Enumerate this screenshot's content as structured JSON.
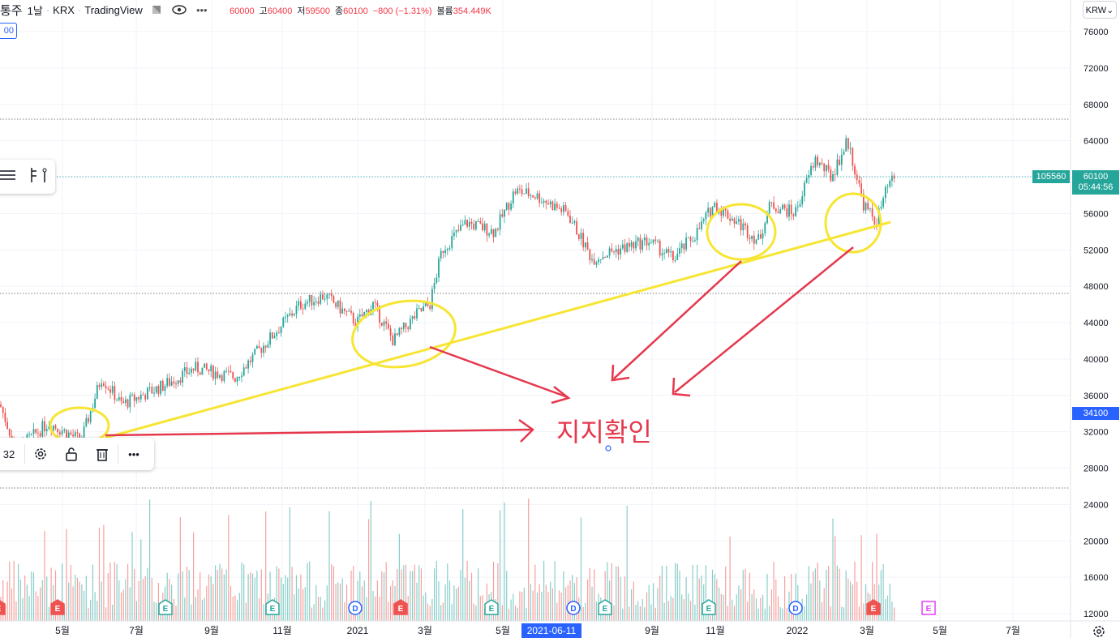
{
  "header": {
    "symbol": "통주",
    "interval": "1날",
    "exchange": "KRX",
    "provider": "TradingView",
    "eye_icon": "eye-icon",
    "more_icon": "more-icon"
  },
  "ohlc": {
    "open_value": "60000",
    "high_label": "고",
    "high_value": "60400",
    "low_label": "저",
    "low_value": "59500",
    "close_label": "종",
    "close_value": "60100",
    "change": "−800 (−1.31%)",
    "volume_label": "볼륨",
    "volume_value": "354.449K"
  },
  "small_box_value": "00",
  "currency_button": "KRW⌄",
  "price_axis": {
    "ticks": [
      "76000",
      "72000",
      "68000",
      "64000",
      "60000",
      "56000",
      "52000",
      "48000",
      "44000",
      "40000",
      "36000",
      "32000",
      "28000",
      "24000",
      "20000",
      "16000",
      "12000"
    ],
    "labels": {
      "left_tag": "105560",
      "current_price": "60100",
      "countdown": "05:44:56",
      "crosshair_price": "34100"
    }
  },
  "time_axis": {
    "ticks": [
      "5월",
      "7월",
      "9월",
      "11월",
      "2021",
      "3월",
      "5월",
      "9월",
      "11월",
      "2022",
      "3월",
      "5월",
      "7월"
    ],
    "crosshair_date": "2021-06-11"
  },
  "drawing_toolbar": {
    "value": "32",
    "settings_icon": "settings-icon",
    "lock_icon": "lock-icon",
    "trash_icon": "trash-icon",
    "more_icon": "more-icon"
  },
  "annotation_text": "지지확인",
  "event_markers": [
    {
      "label": "E",
      "kind": "earnings-red"
    },
    {
      "label": "E",
      "kind": "earnings-red"
    },
    {
      "label": "E",
      "kind": "earnings-green"
    },
    {
      "label": "E",
      "kind": "earnings-green"
    },
    {
      "label": "D",
      "kind": "dividend"
    },
    {
      "label": "E",
      "kind": "earnings-red"
    },
    {
      "label": "E",
      "kind": "earnings-green"
    },
    {
      "label": "D",
      "kind": "dividend"
    },
    {
      "label": "E",
      "kind": "earnings-green"
    },
    {
      "label": "E",
      "kind": "earnings-green"
    },
    {
      "label": "D",
      "kind": "dividend"
    },
    {
      "label": "E",
      "kind": "earnings-red"
    },
    {
      "label": "E",
      "kind": "earnings-future"
    }
  ],
  "colors": {
    "up": "#26a69a",
    "down": "#ef5350",
    "current_price_bg": "#26a69a",
    "crosshair_bg": "#2962ff",
    "annotation_yellow": "#f7e533",
    "annotation_red": "#e5384d"
  }
}
